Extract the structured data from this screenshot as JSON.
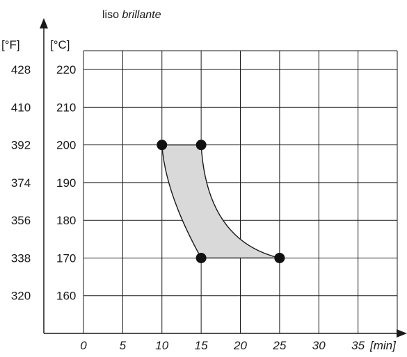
{
  "chart_data": {
    "type": "area",
    "title_prefix": "liso ",
    "title_emphasis": "brillante",
    "x_unit_label": "[min]",
    "y_unit_label_celsius": "[°C]",
    "y_unit_label_fahrenheit": "[°F]",
    "xlim": [
      0,
      40
    ],
    "ylim": [
      150,
      225
    ],
    "grid": true,
    "x_ticks": [
      0,
      5,
      10,
      15,
      20,
      25,
      30,
      35
    ],
    "x_tick_labels": [
      "0",
      "5",
      "10",
      "15",
      "20",
      "25",
      "30",
      "35"
    ],
    "y_ticks_celsius": [
      220,
      210,
      200,
      190,
      180,
      170,
      160
    ],
    "y_tick_labels_celsius": [
      "220",
      "210",
      "200",
      "190",
      "180",
      "170",
      "160"
    ],
    "y_tick_labels_fahrenheit": [
      "428",
      "410",
      "392",
      "374",
      "356",
      "338",
      "320"
    ],
    "series": [
      {
        "points": [
          {
            "x": 10,
            "y": 200
          },
          {
            "x": 15,
            "y": 200
          },
          {
            "x": 25,
            "y": 170
          },
          {
            "x": 15,
            "y": 170
          }
        ]
      }
    ],
    "colors": {
      "fill": "#d9d9d9",
      "line": "#1a1a1a",
      "marker": "#111111",
      "grid": "#1a1a1a"
    }
  }
}
